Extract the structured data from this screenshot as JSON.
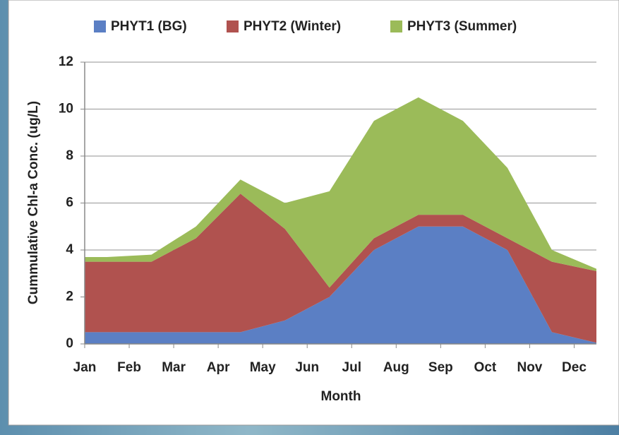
{
  "chart_data": {
    "type": "stacked-area",
    "x_label": "Month",
    "y_label": "Cummulative Chl-a Conc. (ug/L)",
    "categories": [
      "Jan",
      "Feb",
      "Mar",
      "Apr",
      "May",
      "Jun",
      "Jul",
      "Aug",
      "Sep",
      "Oct",
      "Nov",
      "Dec"
    ],
    "series": [
      {
        "name": "PHYT1 (BG)",
        "color": "#5b7fc4",
        "values": [
          0.5,
          0.5,
          0.5,
          0.5,
          1.0,
          2.0,
          4.0,
          5.0,
          5.0,
          4.0,
          0.5,
          0.05
        ]
      },
      {
        "name": "PHYT2 (Winter)",
        "color": "#b0524f",
        "values": [
          3.0,
          3.0,
          4.0,
          5.9,
          3.9,
          0.4,
          0.5,
          0.5,
          0.5,
          0.5,
          3.0,
          3.05
        ]
      },
      {
        "name": "PHYT3 (Summer)",
        "color": "#9bbb59",
        "values": [
          0.2,
          0.3,
          0.5,
          0.6,
          1.1,
          4.1,
          5.0,
          5.0,
          4.0,
          3.0,
          0.5,
          0.1
        ]
      }
    ],
    "ylim": [
      0,
      12
    ],
    "yticks": [
      0,
      2,
      4,
      6,
      8,
      10,
      12
    ],
    "grid": true,
    "legend": "top"
  }
}
